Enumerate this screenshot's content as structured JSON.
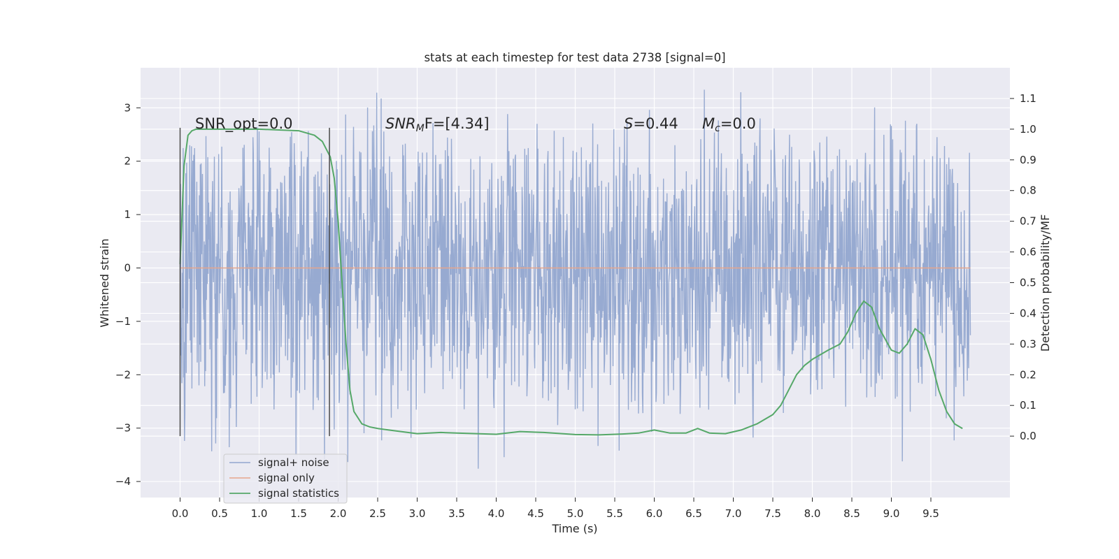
{
  "chart_data": {
    "type": "line",
    "title": "stats at each timestep for test data 2738 [signal=0]",
    "xlabel": "Time (s)",
    "ylabel": "Whitened strain",
    "y2label": "Detection probability/MF",
    "xlim": [
      -0.5,
      10.5
    ],
    "ylim": [
      -4.3,
      3.75
    ],
    "y2lim": [
      -0.2,
      1.2
    ],
    "xticks": [
      "0.0",
      "0.5",
      "1.0",
      "1.5",
      "2.0",
      "2.5",
      "3.0",
      "3.5",
      "4.0",
      "4.5",
      "5.0",
      "5.5",
      "6.0",
      "6.5",
      "7.0",
      "7.5",
      "8.0",
      "8.5",
      "9.0",
      "9.5"
    ],
    "yticks": [
      "3",
      "2",
      "1",
      "0",
      "−1",
      "−2",
      "−3",
      "−4"
    ],
    "y2ticks": [
      "1.1",
      "1.0",
      "0.9",
      "0.8",
      "0.7",
      "0.6",
      "0.5",
      "0.4",
      "0.3",
      "0.2",
      "0.1",
      "0.0"
    ],
    "grid": true,
    "legend_position": "lower-left",
    "annotations": {
      "snr_opt": "SNR_opt=0.0",
      "snr_mf_main": "SNR",
      "snr_mf_sub": "M",
      "snr_mf_rest": "F=[4.34]",
      "s_var": "S",
      "s_rest": "=0.44",
      "mc_var": "M",
      "mc_sub": "c",
      "mc_rest": "=0.0"
    },
    "vertical_markers_x": [
      0.0,
      1.89
    ],
    "series": [
      {
        "name": "signal+ noise",
        "axis": "left",
        "color": "#92a6cf",
        "x_range": [
          0.0,
          10.0
        ],
        "y_core_range": [
          -1.5,
          1.45
        ],
        "y_peak_range": [
          -4.05,
          3.45
        ]
      },
      {
        "name": "signal only",
        "axis": "left",
        "color": "#e6a58b",
        "x": [
          0.0,
          10.0
        ],
        "y": [
          0.0,
          0.0
        ]
      },
      {
        "name": "signal statistics",
        "axis": "right",
        "color": "#55a868",
        "x": [
          0.0,
          0.05,
          0.1,
          0.15,
          0.2,
          0.3,
          0.5,
          1.0,
          1.5,
          1.7,
          1.8,
          1.9,
          1.95,
          2.0,
          2.05,
          2.1,
          2.15,
          2.2,
          2.3,
          2.4,
          2.5,
          2.7,
          3.0,
          3.3,
          3.5,
          4.0,
          4.3,
          4.6,
          5.0,
          5.3,
          5.6,
          5.8,
          6.0,
          6.2,
          6.4,
          6.55,
          6.7,
          6.9,
          7.1,
          7.3,
          7.5,
          7.6,
          7.7,
          7.8,
          7.9,
          8.0,
          8.2,
          8.35,
          8.45,
          8.55,
          8.65,
          8.75,
          8.85,
          9.0,
          9.1,
          9.2,
          9.3,
          9.4,
          9.5,
          9.6,
          9.7,
          9.8,
          9.9
        ],
        "y": [
          0.56,
          0.88,
          0.98,
          0.995,
          1.0,
          1.0,
          1.0,
          1.0,
          0.995,
          0.98,
          0.96,
          0.91,
          0.84,
          0.7,
          0.5,
          0.3,
          0.15,
          0.08,
          0.04,
          0.03,
          0.025,
          0.018,
          0.008,
          0.012,
          0.01,
          0.006,
          0.015,
          0.012,
          0.005,
          0.004,
          0.007,
          0.01,
          0.02,
          0.01,
          0.01,
          0.025,
          0.01,
          0.008,
          0.02,
          0.04,
          0.07,
          0.1,
          0.15,
          0.2,
          0.23,
          0.25,
          0.28,
          0.3,
          0.34,
          0.4,
          0.44,
          0.42,
          0.35,
          0.28,
          0.27,
          0.3,
          0.35,
          0.33,
          0.25,
          0.15,
          0.08,
          0.04,
          0.025
        ]
      }
    ]
  }
}
